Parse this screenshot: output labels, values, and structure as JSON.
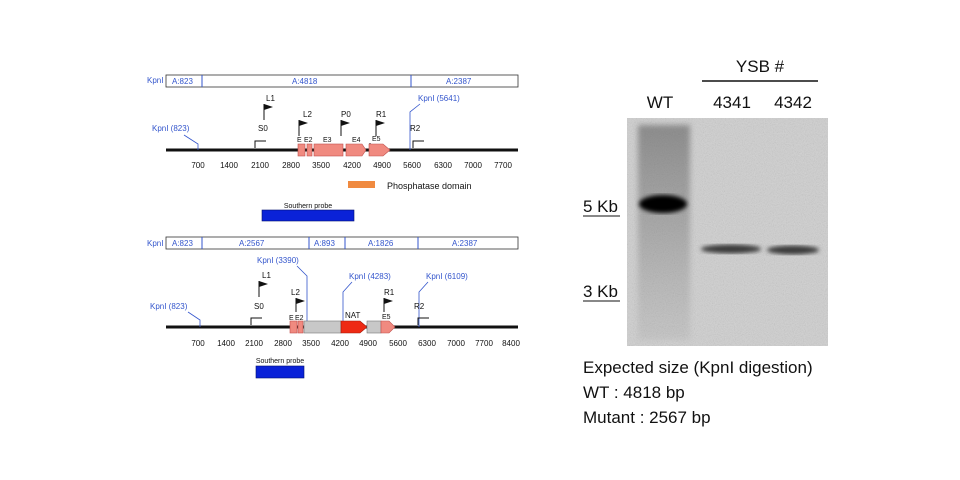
{
  "colors": {
    "kpn_label": "#3355cc",
    "probe": "#0a22d8",
    "exon": "#f08a80",
    "exon_stroke": "#c0504d",
    "nat": "#ee2a14",
    "phosphatase_key": "#f08a40",
    "deleted_region": "#c8c8c8"
  },
  "wt_map": {
    "segment_row": {
      "enzyme": "KpnI",
      "segments": [
        "A:823",
        "A:4818",
        "A:2387"
      ]
    },
    "ruler": [
      "700",
      "1400",
      "2100",
      "2800",
      "3500",
      "4200",
      "4900",
      "5600",
      "6300",
      "7000",
      "7700"
    ],
    "kpn_sites": [
      "KpnI (823)",
      "KpnI (5641)"
    ],
    "primers": [
      "L1",
      "L2",
      "P0",
      "R1"
    ],
    "primer_sites": [
      "S0",
      "E3",
      "E4",
      "E5",
      "R2"
    ],
    "exon_labels": [
      "E",
      "E2"
    ],
    "legend_label": "Phosphatase domain",
    "probe_label": "Southern probe"
  },
  "mut_map": {
    "segment_row": {
      "enzyme": "KpnI",
      "segments": [
        "A:823",
        "A:2567",
        "A:893",
        "A:1826",
        "A:2387"
      ]
    },
    "ruler": [
      "700",
      "1400",
      "2100",
      "2800",
      "3500",
      "4200",
      "4900",
      "5600",
      "6300",
      "7000",
      "7700",
      "8400"
    ],
    "kpn_sites": [
      "KpnI (823)",
      "KpnI (3390)",
      "KpnI (4283)",
      "KpnI (6109)"
    ],
    "primers": [
      "L1",
      "L2",
      "R1"
    ],
    "primer_sites": [
      "S0",
      "E5",
      "R2"
    ],
    "exon_labels": [
      "E",
      "E2"
    ],
    "nat_label": "NAT",
    "probe_label": "Southern probe"
  },
  "gel": {
    "group_label": "YSB #",
    "lanes": [
      "WT",
      "4341",
      "4342"
    ],
    "markers": [
      "5 Kb",
      "3 Kb"
    ]
  },
  "caption": {
    "line1": "Expected size (KpnI digestion)",
    "line2": "WT : 4818 bp",
    "line3": "Mutant : 2567 bp"
  }
}
